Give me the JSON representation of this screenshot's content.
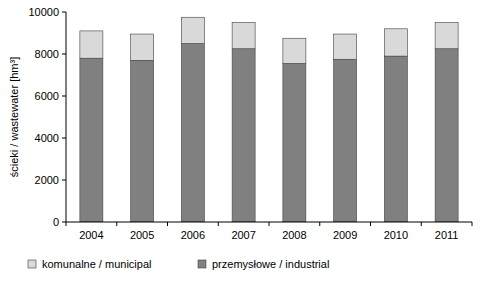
{
  "chart_data": {
    "type": "bar",
    "stacked": true,
    "y_label": "ścieki / wastewater [hm³]",
    "categories": [
      "2004",
      "2005",
      "2006",
      "2007",
      "2008",
      "2009",
      "2010",
      "2011"
    ],
    "series": [
      {
        "name": "przemysłowe / industrial",
        "color": "#808080",
        "values": [
          7800,
          7700,
          8500,
          8250,
          7550,
          7750,
          7900,
          8250
        ]
      },
      {
        "name": "komunalne / municipal",
        "color": "#d9d9d9",
        "values": [
          1300,
          1250,
          1250,
          1250,
          1200,
          1200,
          1300,
          1250
        ]
      }
    ],
    "ylim": [
      0,
      10000
    ],
    "yticks": [
      0,
      2000,
      4000,
      6000,
      8000,
      10000
    ],
    "grid": false,
    "legend": "bottom"
  }
}
